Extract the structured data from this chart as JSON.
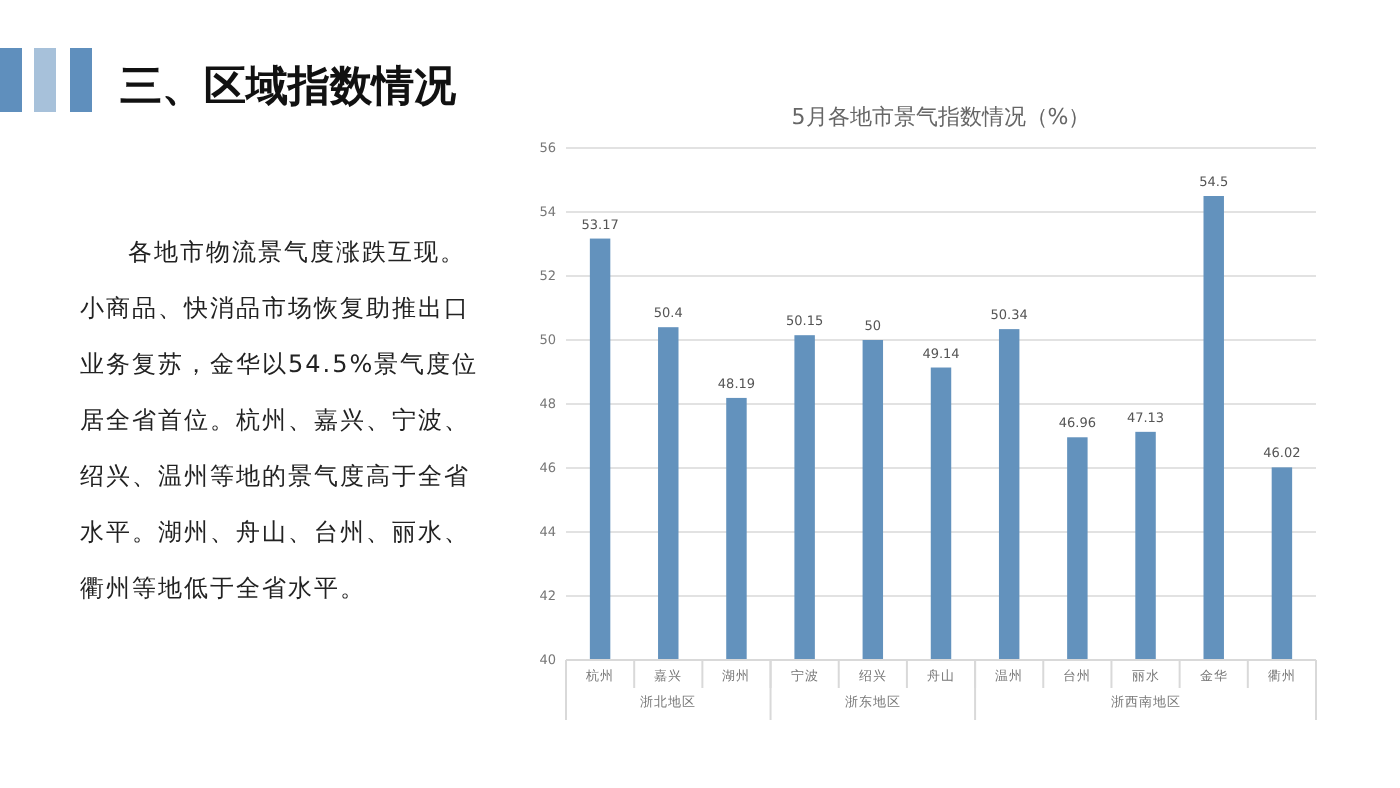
{
  "chart_data": {
    "type": "bar",
    "title": "5月各地市景气指数情况（%）",
    "categories": [
      "杭州",
      "嘉兴",
      "湖州",
      "宁波",
      "绍兴",
      "舟山",
      "温州",
      "台州",
      "丽水",
      "金华",
      "衢州"
    ],
    "values": [
      53.17,
      50.4,
      48.19,
      50.15,
      50,
      49.14,
      50.34,
      46.96,
      47.13,
      54.5,
      46.02
    ],
    "color": "#6392bd",
    "ylim": [
      40,
      56
    ],
    "yticks": [
      40,
      42,
      44,
      46,
      48,
      50,
      52,
      54,
      56
    ],
    "grid": "y",
    "data_labels": true,
    "annotations": [
      "三、区域指数情况",
      "各地市物流景气度涨跌互现。小商品、快消品市场恢复助推出口业务复苏，金华以54.5%景气度位居全省首位。杭州、嘉兴、宁波、绍兴、温州等地的景气度高于全省水平。湖州、舟山、台州、丽水、衢州等地低于全省水平。",
      "浙北地区",
      "浙东地区",
      "浙西南地区"
    ]
  }
}
